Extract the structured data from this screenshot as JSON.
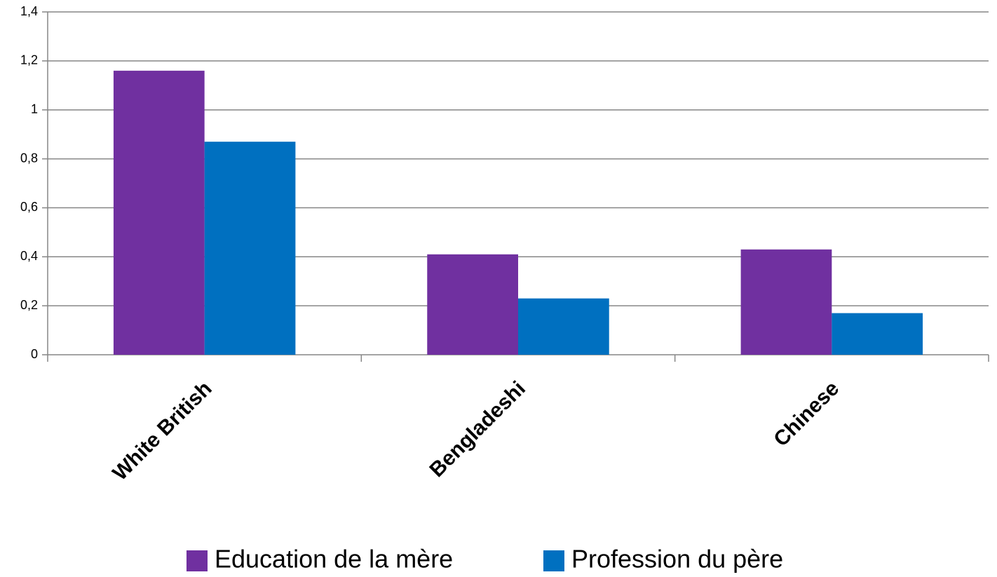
{
  "chart_data": {
    "type": "bar",
    "categories": [
      "White British",
      "Bengladeshi",
      "Chinese"
    ],
    "series": [
      {
        "name": "Education de la mère",
        "color": "#7030a0",
        "values": [
          1.16,
          0.41,
          0.43
        ]
      },
      {
        "name": "Profession du père",
        "color": "#0070c0",
        "values": [
          0.87,
          0.23,
          0.17
        ]
      }
    ],
    "ylim": [
      0,
      1.4
    ],
    "yticks": [
      0,
      {
        "value": 0.2,
        "label": "0,2"
      },
      {
        "value": 0.4,
        "label": "0,4"
      },
      {
        "value": 0.6,
        "label": "0,6"
      },
      {
        "value": 0.8,
        "label": "0,8"
      },
      1,
      {
        "value": 1.2,
        "label": "1,2"
      },
      {
        "value": 1.4,
        "label": "1,4"
      }
    ],
    "grid": true,
    "legend": "bottom"
  }
}
